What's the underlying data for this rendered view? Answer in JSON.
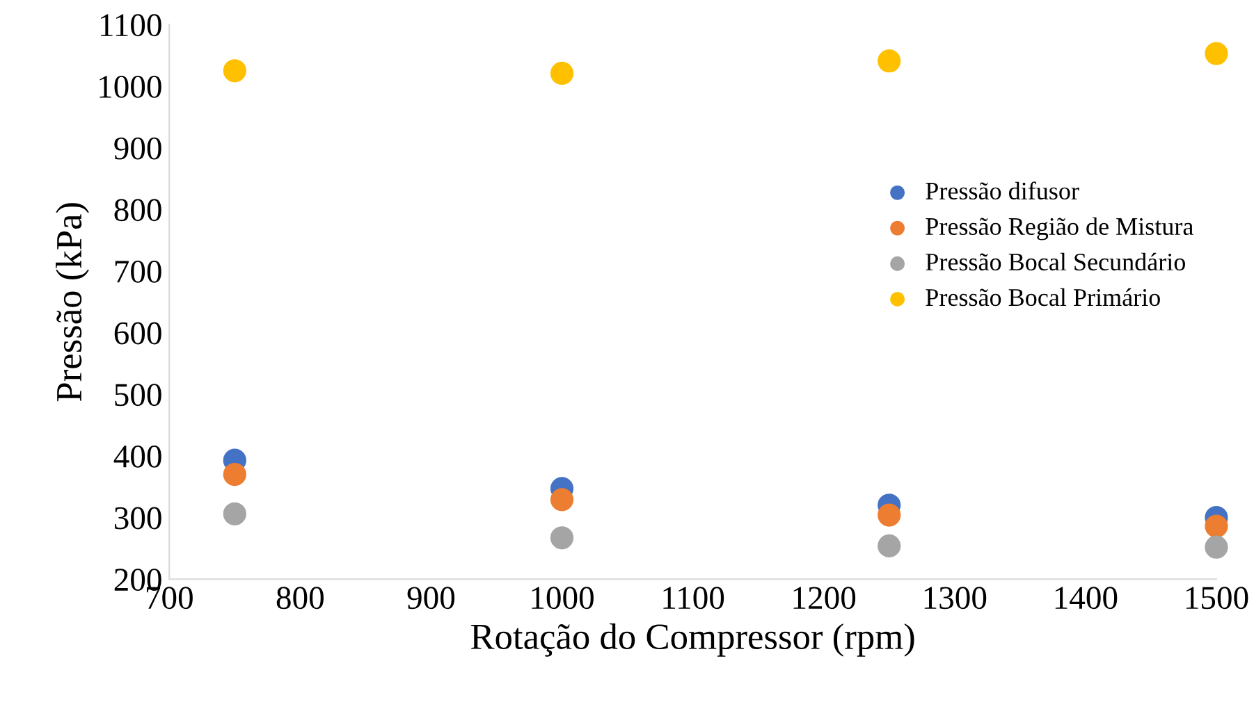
{
  "chart_data": {
    "type": "scatter",
    "xlabel": "Rotação do Compressor (rpm)",
    "ylabel": "Pressão (kPa)",
    "x": [
      750,
      1000,
      1250,
      1500
    ],
    "series": [
      {
        "name": "Pressão difusor",
        "color": "#4472c4",
        "values": [
          393,
          347,
          320,
          300
        ]
      },
      {
        "name": "Pressão Região de Mistura",
        "color": "#ed7d31",
        "values": [
          370,
          329,
          304,
          286
        ]
      },
      {
        "name": "Pressão Bocal Secundário",
        "color": "#a5a5a5",
        "values": [
          306,
          267,
          254,
          252
        ]
      },
      {
        "name": "Pressão Bocal Primário",
        "color": "#ffc000",
        "values": [
          1025,
          1021,
          1041,
          1053
        ]
      }
    ],
    "xlim": [
      700,
      1500
    ],
    "xticks": [
      700,
      800,
      900,
      1000,
      1100,
      1200,
      1300,
      1400,
      1500
    ],
    "ylim": [
      200,
      1100
    ],
    "yticks": [
      200,
      300,
      400,
      500,
      600,
      700,
      800,
      900,
      1000,
      1100
    ],
    "grid": false,
    "legend": "right",
    "marker": "circle"
  }
}
